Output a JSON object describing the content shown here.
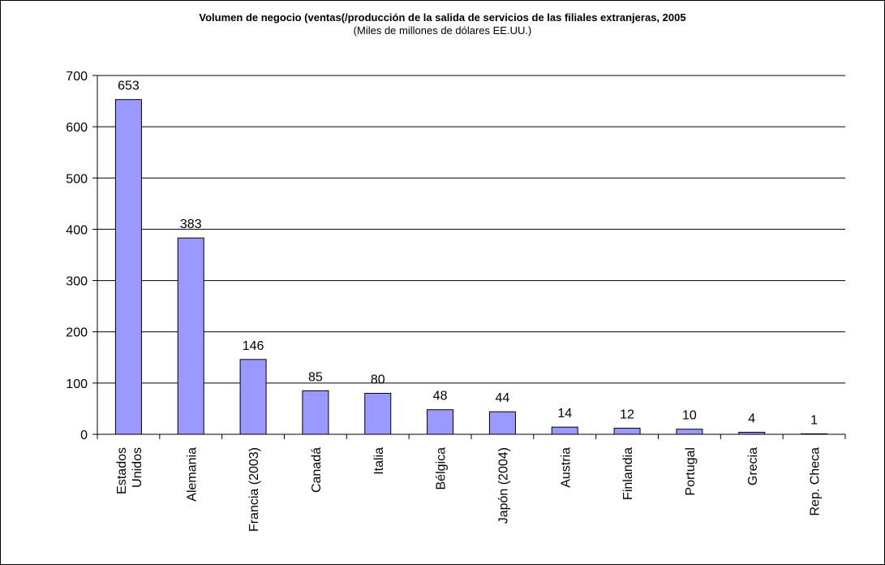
{
  "chart_data": {
    "type": "bar",
    "title": "Volumen de negocio (ventas(/producción de la salida de servicios de las filiales extranjeras, 2005",
    "subtitle": "(Miles de millones de dólares EE.UU.)",
    "categories": [
      [
        "Estados",
        "Unidos"
      ],
      [
        "Alemania"
      ],
      [
        "Francia (2003)"
      ],
      [
        "Canadá"
      ],
      [
        "Italia"
      ],
      [
        "Bélgica"
      ],
      [
        "Japón (2004)"
      ],
      [
        "Austria"
      ],
      [
        "Finlandia"
      ],
      [
        "Portugal"
      ],
      [
        "Grecia"
      ],
      [
        "Rep. Checa"
      ]
    ],
    "values": [
      653,
      383,
      146,
      85,
      80,
      48,
      44,
      14,
      12,
      10,
      4,
      1
    ],
    "ylim": [
      0,
      700
    ],
    "yticks": [
      0,
      100,
      200,
      300,
      400,
      500,
      600,
      700
    ],
    "grid": true,
    "legend": "none",
    "bar_color": "#9999ff"
  }
}
